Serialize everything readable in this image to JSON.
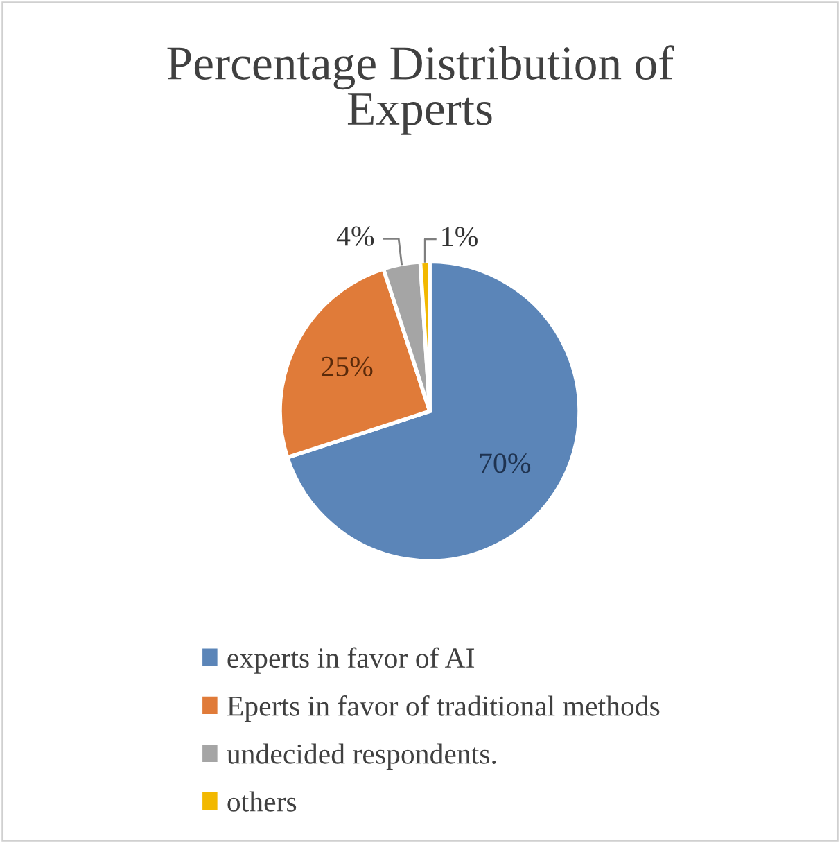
{
  "chart_data": {
    "type": "pie",
    "title": "Percentage Distribution of\nExperts",
    "categories": [
      "experts in favor of AI",
      "Eperts in favor of traditional methods",
      "undecided respondents.",
      "others"
    ],
    "values": [
      70,
      25,
      4,
      1
    ],
    "colors": [
      "#5b85b8",
      "#e07b39",
      "#a5a5a5",
      "#f2b800"
    ],
    "value_labels": [
      "70%",
      "25%",
      "4%",
      "1%"
    ],
    "legend": "bottom"
  }
}
